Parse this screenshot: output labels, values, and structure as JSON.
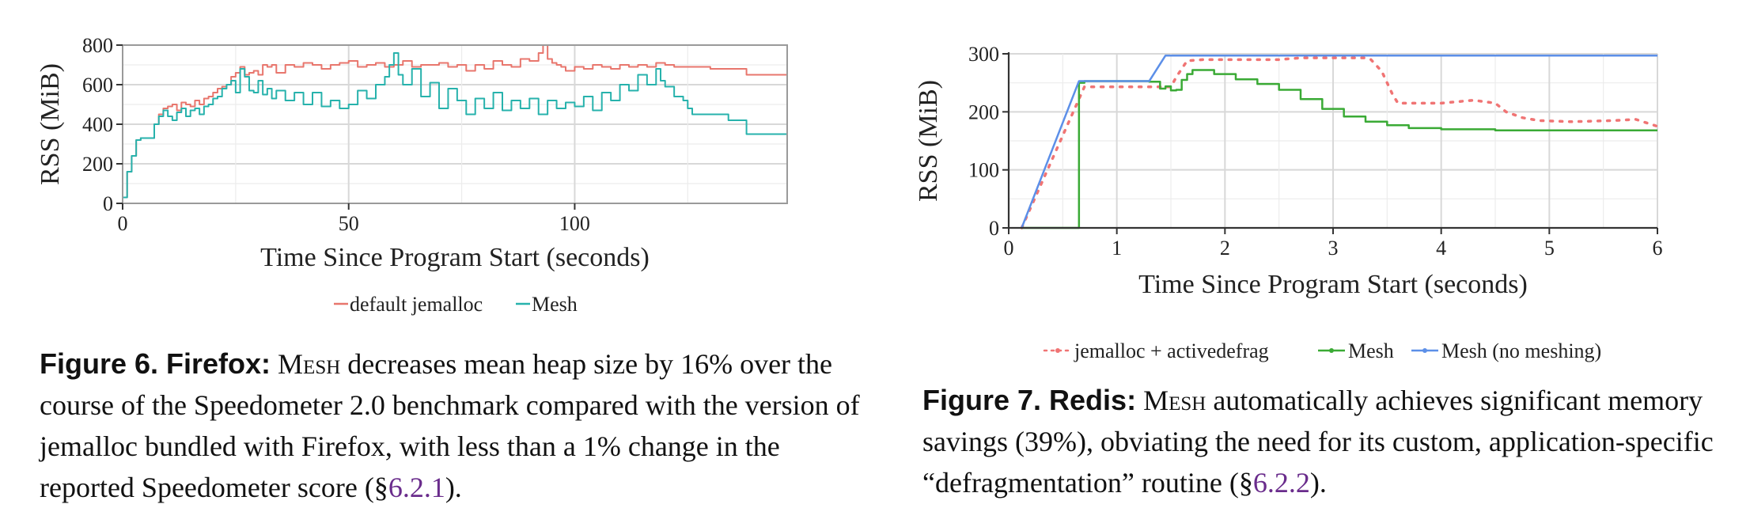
{
  "chart_data": [
    {
      "type": "line",
      "title": "",
      "xlabel": "Time Since Program Start (seconds)",
      "ylabel": "RSS (MiB)",
      "xlim": [
        0,
        147
      ],
      "ylim": [
        0,
        800
      ],
      "xticks": [
        0,
        50,
        100
      ],
      "yticks": [
        0,
        200,
        400,
        600,
        800
      ],
      "grid": true,
      "legend_position": "bottom-center",
      "series": [
        {
          "name": "default jemalloc",
          "color": "#e8766d",
          "x": [
            0,
            1,
            2,
            3,
            4,
            6,
            7,
            8,
            9,
            10,
            11,
            12,
            13,
            14,
            15,
            16,
            17,
            18,
            19,
            20,
            21,
            22,
            23,
            24,
            25,
            26,
            27,
            28,
            29,
            30,
            31,
            32,
            33,
            34,
            36,
            38,
            40,
            42,
            44,
            46,
            48,
            50,
            52,
            54,
            56,
            58,
            60,
            62,
            64,
            66,
            68,
            70,
            72,
            74,
            76,
            78,
            80,
            82,
            84,
            86,
            88,
            90,
            92,
            93,
            94,
            95,
            96,
            97,
            98,
            100,
            102,
            104,
            106,
            108,
            110,
            112,
            114,
            116,
            118,
            120,
            122,
            124,
            126,
            128,
            130,
            134,
            138,
            140,
            147
          ],
          "y": [
            30,
            160,
            240,
            320,
            330,
            330,
            400,
            450,
            480,
            490,
            500,
            470,
            510,
            500,
            490,
            520,
            500,
            530,
            540,
            560,
            580,
            590,
            600,
            640,
            660,
            690,
            650,
            660,
            670,
            650,
            700,
            690,
            700,
            660,
            700,
            690,
            710,
            700,
            680,
            700,
            710,
            720,
            690,
            700,
            710,
            690,
            700,
            720,
            690,
            700,
            700,
            710,
            690,
            700,
            670,
            700,
            680,
            720,
            700,
            690,
            730,
            720,
            760,
            800,
            730,
            710,
            700,
            690,
            670,
            690,
            680,
            700,
            690,
            680,
            700,
            690,
            700,
            690,
            710,
            700,
            690,
            690,
            690,
            690,
            680,
            680,
            650,
            650,
            650
          ]
        },
        {
          "name": "Mesh",
          "color": "#27b2ac",
          "x": [
            0,
            1,
            2,
            3,
            4,
            6,
            7,
            8,
            9,
            10,
            11,
            12,
            13,
            14,
            15,
            16,
            17,
            18,
            19,
            20,
            21,
            22,
            23,
            24,
            25,
            26,
            27,
            28,
            29,
            30,
            31,
            32,
            33,
            34,
            36,
            38,
            40,
            42,
            44,
            46,
            48,
            50,
            52,
            54,
            56,
            58,
            59,
            60,
            61,
            62,
            64,
            66,
            68,
            70,
            72,
            74,
            76,
            78,
            80,
            82,
            84,
            86,
            88,
            90,
            92,
            94,
            96,
            98,
            100,
            102,
            104,
            106,
            108,
            110,
            112,
            114,
            116,
            118,
            119,
            120,
            122,
            124,
            125,
            126,
            128,
            130,
            134,
            138,
            147
          ],
          "y": [
            30,
            160,
            240,
            320,
            330,
            330,
            400,
            440,
            470,
            440,
            420,
            460,
            480,
            440,
            470,
            480,
            450,
            490,
            500,
            530,
            540,
            580,
            600,
            620,
            560,
            680,
            640,
            570,
            560,
            620,
            550,
            580,
            530,
            570,
            520,
            560,
            500,
            560,
            490,
            520,
            480,
            500,
            570,
            530,
            600,
            640,
            700,
            760,
            650,
            600,
            680,
            540,
            610,
            480,
            580,
            520,
            450,
            530,
            480,
            560,
            470,
            520,
            480,
            530,
            450,
            520,
            480,
            510,
            490,
            540,
            470,
            560,
            520,
            600,
            570,
            650,
            600,
            680,
            620,
            590,
            540,
            520,
            480,
            450,
            450,
            450,
            420,
            350,
            350
          ]
        }
      ]
    },
    {
      "type": "line",
      "title": "",
      "xlabel": "Time Since Program Start (seconds)",
      "ylabel": "RSS (MiB)",
      "xlim": [
        0,
        6
      ],
      "ylim": [
        0,
        300
      ],
      "xticks": [
        0,
        1,
        2,
        3,
        4,
        5,
        6
      ],
      "yticks": [
        0,
        100,
        200,
        300
      ],
      "grid": true,
      "legend_position": "bottom-center",
      "series": [
        {
          "name": "jemalloc + activedefrag",
          "color": "#f07474",
          "style": "dotted",
          "x": [
            0.12,
            0.7,
            1.5,
            1.55,
            1.65,
            1.8,
            2.5,
            2.7,
            3.3,
            3.35,
            3.45,
            3.55,
            3.6,
            4.0,
            4.3,
            4.5,
            4.6,
            4.75,
            4.9,
            5.2,
            5.6,
            5.8,
            5.95,
            6.0
          ],
          "y": [
            0,
            243,
            243,
            260,
            288,
            290,
            290,
            293,
            293,
            290,
            270,
            230,
            215,
            215,
            220,
            215,
            200,
            190,
            185,
            183,
            185,
            187,
            178,
            175
          ]
        },
        {
          "name": "Mesh",
          "color": "#3aaa35",
          "style": "solid",
          "x": [
            0.12,
            0.65,
            0.7,
            1.0,
            1.3,
            1.4,
            1.45,
            1.5,
            1.55,
            1.6,
            1.65,
            1.7,
            1.9,
            2.1,
            2.3,
            2.5,
            2.7,
            2.9,
            3.1,
            3.3,
            3.5,
            3.7,
            4.0,
            4.5,
            5.0,
            5.5,
            6.0
          ],
          "y": [
            0,
            250,
            253,
            253,
            252,
            240,
            244,
            237,
            238,
            255,
            265,
            272,
            265,
            256,
            248,
            238,
            222,
            205,
            192,
            183,
            177,
            172,
            170,
            168,
            168,
            168,
            168
          ],
          "step": true
        },
        {
          "name": "Mesh (no meshing)",
          "color": "#5c8fe8",
          "style": "solid",
          "x": [
            0.12,
            0.65,
            1.3,
            1.45,
            6.0
          ],
          "y": [
            0,
            253,
            253,
            297,
            297
          ]
        }
      ]
    }
  ],
  "legends": {
    "left": "—default jemalloc—Mesh",
    "right": [
      "jemalloc + activedefrag",
      "Mesh",
      "Mesh (no meshing)"
    ]
  },
  "captions": {
    "left": {
      "label": "Figure 6. Firefox:",
      "name": "Mesh",
      "text": " decreases mean heap size by 16% over the course of the Speedometer 2.0 benchmark compared with the version of jemalloc bundled with Firefox, with less than a 1% change in the reported Speedometer score (§",
      "ref": "6.2.1",
      "end": ")."
    },
    "right": {
      "label": "Figure 7. Redis:",
      "name": "Mesh",
      "text": " automatically achieves significant memory savings (39%), obviating the need for its custom, application-specific “defragmentation” routine (§",
      "ref": "6.2.2",
      "end": ")."
    }
  }
}
